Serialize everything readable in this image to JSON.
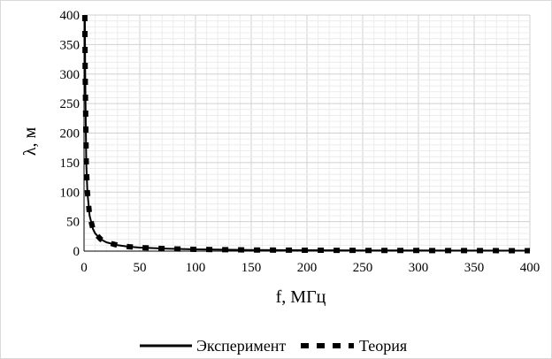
{
  "chart_data": {
    "type": "line",
    "title": "",
    "xlabel": "f, МГц",
    "ylabel": "λ, м",
    "xlim": [
      0,
      400
    ],
    "ylim": [
      0,
      400
    ],
    "x_ticks": [
      0,
      50,
      100,
      150,
      200,
      250,
      300,
      350,
      400
    ],
    "y_ticks": [
      0,
      50,
      100,
      150,
      200,
      250,
      300,
      350,
      400
    ],
    "grid": true,
    "legend_position": "bottom",
    "series": [
      {
        "name": "Эксперимент",
        "style": "solid",
        "color": "#000000",
        "x": [
          0.75,
          1,
          2,
          3,
          5,
          8,
          10,
          15,
          20,
          30,
          40,
          50,
          75,
          100,
          150,
          200,
          250,
          300,
          350,
          400
        ],
        "y": [
          400,
          300,
          150,
          100,
          60,
          37.5,
          30,
          20,
          15,
          10,
          7.5,
          6,
          4,
          3,
          2,
          1.5,
          1.2,
          1,
          0.86,
          0.75
        ]
      },
      {
        "name": "Теория",
        "style": "dashed",
        "color": "#000000",
        "x": [
          0.75,
          1,
          2,
          3,
          5,
          8,
          10,
          15,
          20,
          30,
          40,
          50,
          75,
          100,
          150,
          200,
          250,
          300,
          350,
          400
        ],
        "y": [
          400,
          300,
          150,
          100,
          60,
          37.5,
          30,
          20,
          15,
          10,
          7.5,
          6,
          4,
          3,
          2,
          1.5,
          1.2,
          1,
          0.86,
          0.75
        ]
      }
    ]
  }
}
